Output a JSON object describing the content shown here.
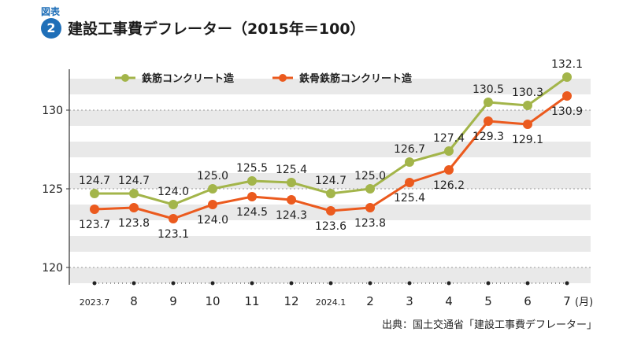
{
  "header": {
    "figure_label": "図表",
    "figure_number": "2",
    "title": "建設工事費デフレーター（2015年＝100）"
  },
  "source": "出典：国土交通省「建設工事費デフレーター」",
  "chart_data": {
    "type": "line",
    "x": [
      "2023.7",
      "8",
      "9",
      "10",
      "11",
      "12",
      "2024.1",
      "2",
      "3",
      "4",
      "5",
      "6",
      "7"
    ],
    "x_unit_suffix": "(月)",
    "series": [
      {
        "name": "鉄筋コンクリート造",
        "color": "#a3b54a",
        "values": [
          124.7,
          124.7,
          124.0,
          125.0,
          125.5,
          125.4,
          124.7,
          125.0,
          126.7,
          127.4,
          130.5,
          130.3,
          132.1
        ],
        "labels": [
          "124.7",
          "124.7",
          "124.0",
          "125.0",
          "125.5",
          "125.4",
          "124.7",
          "125.0",
          "126.7",
          "127.4",
          "130.5",
          "130.3",
          "132.1"
        ]
      },
      {
        "name": "鉄骨鉄筋コンクリート造",
        "color": "#eb5a1e",
        "values": [
          123.7,
          123.8,
          123.1,
          124.0,
          124.5,
          124.3,
          123.6,
          123.8,
          125.4,
          126.2,
          129.3,
          129.1,
          130.9
        ],
        "labels": [
          "123.7",
          "123.8",
          "123.1",
          "124.0",
          "124.5",
          "124.3",
          "123.6",
          "123.8",
          "125.4",
          "126.2",
          "129.3",
          "129.1",
          "130.9"
        ]
      }
    ],
    "y_ticks": [
      120,
      125,
      130
    ],
    "ylim": [
      119,
      133
    ],
    "legend_position": "top-left",
    "grid": "horizontal bands"
  }
}
